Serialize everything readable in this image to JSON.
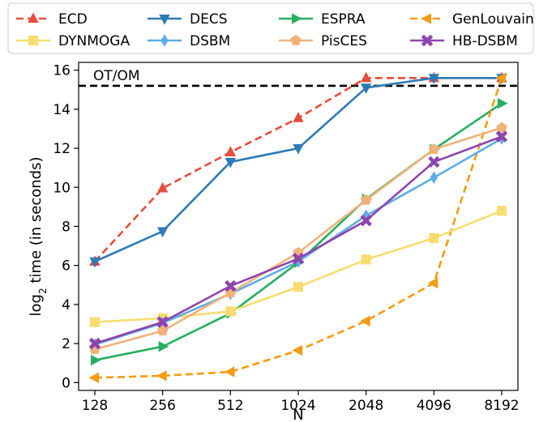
{
  "chart_data": {
    "type": "line",
    "xlabel": "N",
    "ylabel": "log",
    "ylabel_sub": "2",
    "ylabel_rest": " time (in seconds)",
    "categories": [
      "128",
      "256",
      "512",
      "1024",
      "2048",
      "4096",
      "8192"
    ],
    "ylim": [
      -0.4,
      16.4
    ],
    "yticks": [
      0,
      2,
      4,
      6,
      8,
      10,
      12,
      14,
      16
    ],
    "grid": false,
    "legend_position": "top, outside plot, 4 columns",
    "threshold": {
      "label": "OT/OM",
      "value": 15.2,
      "color": "#000000",
      "style": "dashed"
    },
    "series": [
      {
        "name": "ECD",
        "color": "#e74c3c",
        "dash": "dashed",
        "marker": "triangle-up",
        "values": [
          6.2,
          9.95,
          11.8,
          13.55,
          15.6,
          15.6,
          15.6
        ]
      },
      {
        "name": "DECS",
        "color": "#2e7bb4",
        "dash": "solid",
        "marker": "triangle-down",
        "values": [
          6.2,
          7.75,
          11.3,
          12.0,
          15.1,
          15.6,
          15.6
        ]
      },
      {
        "name": "ESPRA",
        "color": "#27ae60",
        "dash": "solid",
        "marker": "triangle-right",
        "values": [
          1.15,
          1.85,
          3.55,
          6.15,
          9.4,
          11.95,
          14.3
        ]
      },
      {
        "name": "GenLouvain",
        "color": "#f39c12",
        "dash": "dashed",
        "marker": "triangle-left",
        "values": [
          0.25,
          0.35,
          0.55,
          1.65,
          3.15,
          5.1,
          15.6
        ]
      },
      {
        "name": "DYNMOGA",
        "color": "#f7dc6f",
        "dash": "solid",
        "marker": "square",
        "values": [
          3.1,
          3.3,
          3.65,
          4.9,
          6.3,
          7.4,
          8.8
        ]
      },
      {
        "name": "DSBM",
        "color": "#5dade2",
        "dash": "solid",
        "marker": "diamond",
        "values": [
          1.95,
          3.05,
          4.55,
          6.2,
          8.55,
          10.5,
          12.5
        ]
      },
      {
        "name": "PisCES",
        "color": "#f0b27a",
        "dash": "solid",
        "marker": "pentagon",
        "values": [
          1.7,
          2.65,
          4.6,
          6.65,
          9.35,
          11.95,
          13.05
        ]
      },
      {
        "name": "HB-DSBM",
        "color": "#8e44ad",
        "dash": "solid",
        "marker": "x-filled",
        "values": [
          2.0,
          3.1,
          4.95,
          6.35,
          8.3,
          11.3,
          12.6
        ]
      }
    ]
  }
}
